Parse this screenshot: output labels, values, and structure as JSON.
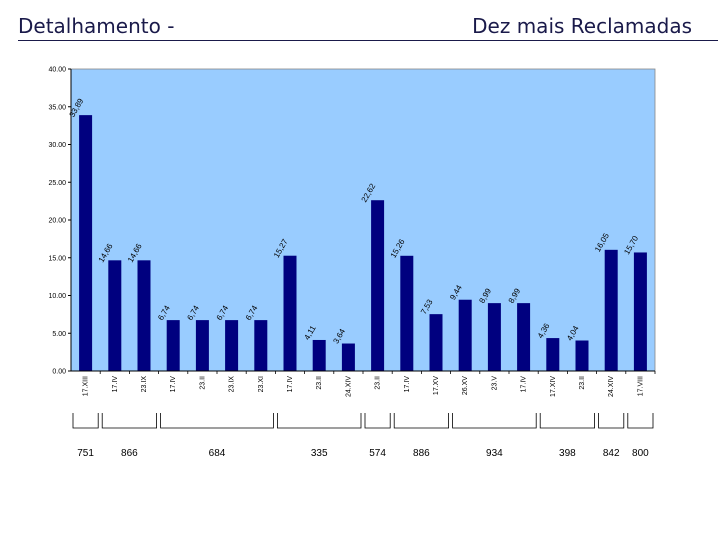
{
  "header": {
    "title_left": "Detalhamento -",
    "title_right": "Dez mais Reclamadas"
  },
  "colors": {
    "plot_background": "#99ccff",
    "bar": "#00007f",
    "page_background": "#ffffff",
    "title": "#1a1a4a"
  },
  "chart_data": {
    "type": "bar",
    "title": "",
    "xlabel": "",
    "ylabel": "",
    "ylim": [
      0,
      40
    ],
    "yticks": [
      "0.00",
      "5.00",
      "10.00",
      "15.00",
      "20.00",
      "25.00",
      "30.00",
      "35.00",
      "40.00"
    ],
    "ytick_values": [
      0,
      5,
      10,
      15,
      20,
      25,
      30,
      35,
      40
    ],
    "grid": false,
    "legend": "none",
    "categories": [
      "17.XIII",
      "17.IV",
      "23.IX",
      "17.IV",
      "23.II",
      "23.IX",
      "23.XI",
      "17.IV",
      "23.II",
      "24.XIV",
      "23.II",
      "17.IV",
      "17.XV",
      "26.XV",
      "23.V",
      "17.IV",
      "17.XIV",
      "23.II",
      "24.XIV",
      "17.VIII"
    ],
    "values": [
      33.89,
      14.66,
      14.66,
      6.74,
      6.74,
      6.74,
      6.74,
      15.27,
      4.11,
      3.64,
      22.62,
      15.26,
      7.53,
      9.44,
      8.99,
      8.99,
      4.36,
      4.04,
      16.05,
      15.7
    ],
    "value_labels": [
      "33,89",
      "14,66",
      "14,66",
      "6,74",
      "6,74",
      "6,74",
      "6,74",
      "15,27",
      "4,11",
      "3,64",
      "22,62",
      "15,26",
      "7,53",
      "9,44",
      "8,99",
      "8,99",
      "4,36",
      "4,04",
      "16,05",
      "15,70"
    ],
    "group_labels": [
      "751",
      "866",
      "684",
      "335",
      "574",
      "886",
      "934",
      "398",
      "842",
      "800"
    ],
    "group_sizes": [
      1,
      2,
      4,
      3,
      1,
      2,
      3,
      2,
      1,
      1
    ]
  }
}
